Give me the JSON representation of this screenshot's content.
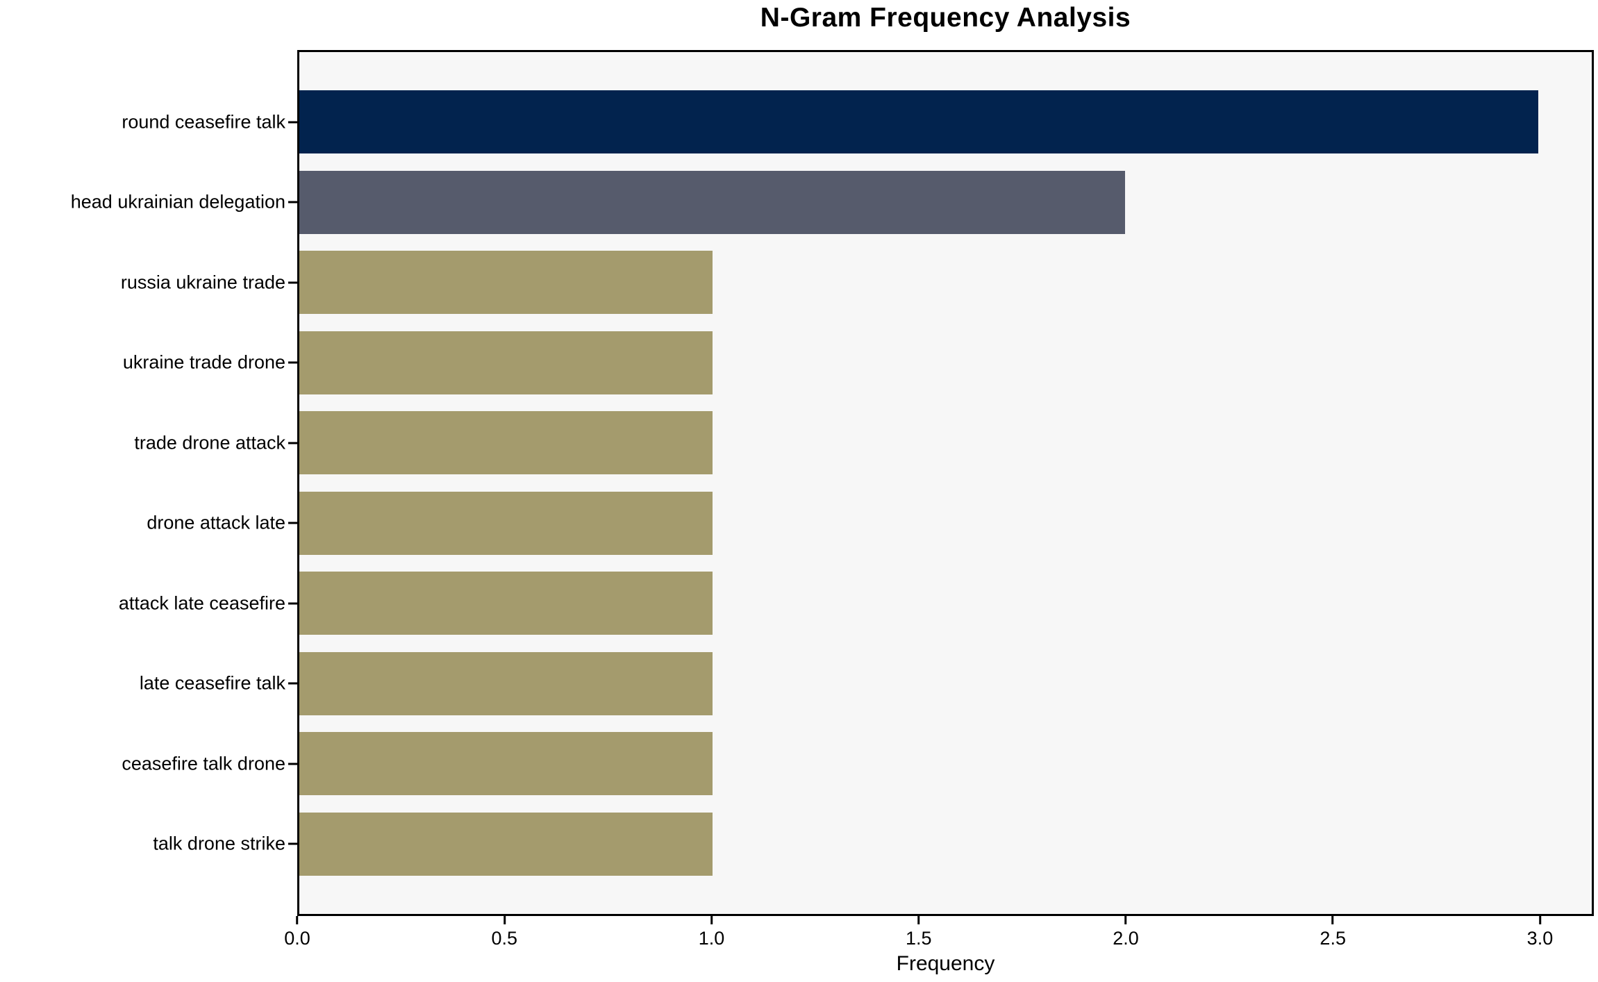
{
  "chart_data": {
    "type": "bar",
    "orientation": "horizontal",
    "title": "N-Gram Frequency Analysis",
    "xlabel": "Frequency",
    "ylabel": "",
    "categories": [
      "round ceasefire talk",
      "head ukrainian delegation",
      "russia ukraine trade",
      "ukraine trade drone",
      "trade drone attack",
      "drone attack late",
      "attack late ceasefire",
      "late ceasefire talk",
      "ceasefire talk drone",
      "talk drone strike"
    ],
    "values": [
      3,
      2,
      1,
      1,
      1,
      1,
      1,
      1,
      1,
      1
    ],
    "bar_colors": [
      "#02234e",
      "#565b6c",
      "#a49b6d",
      "#a49b6d",
      "#a49b6d",
      "#a49b6d",
      "#a49b6d",
      "#a49b6d",
      "#a49b6d",
      "#a49b6d"
    ],
    "xticks": [
      0.0,
      0.5,
      1.0,
      1.5,
      2.0,
      2.5,
      3.0
    ],
    "xtick_labels": [
      "0.0",
      "0.5",
      "1.0",
      "1.5",
      "2.0",
      "2.5",
      "3.0"
    ],
    "xlim": [
      0,
      3.13
    ],
    "grid": false,
    "legend": "none",
    "plot_background": "#f7f7f7",
    "figure_background": "#ffffff",
    "spine_color": "#000000"
  }
}
